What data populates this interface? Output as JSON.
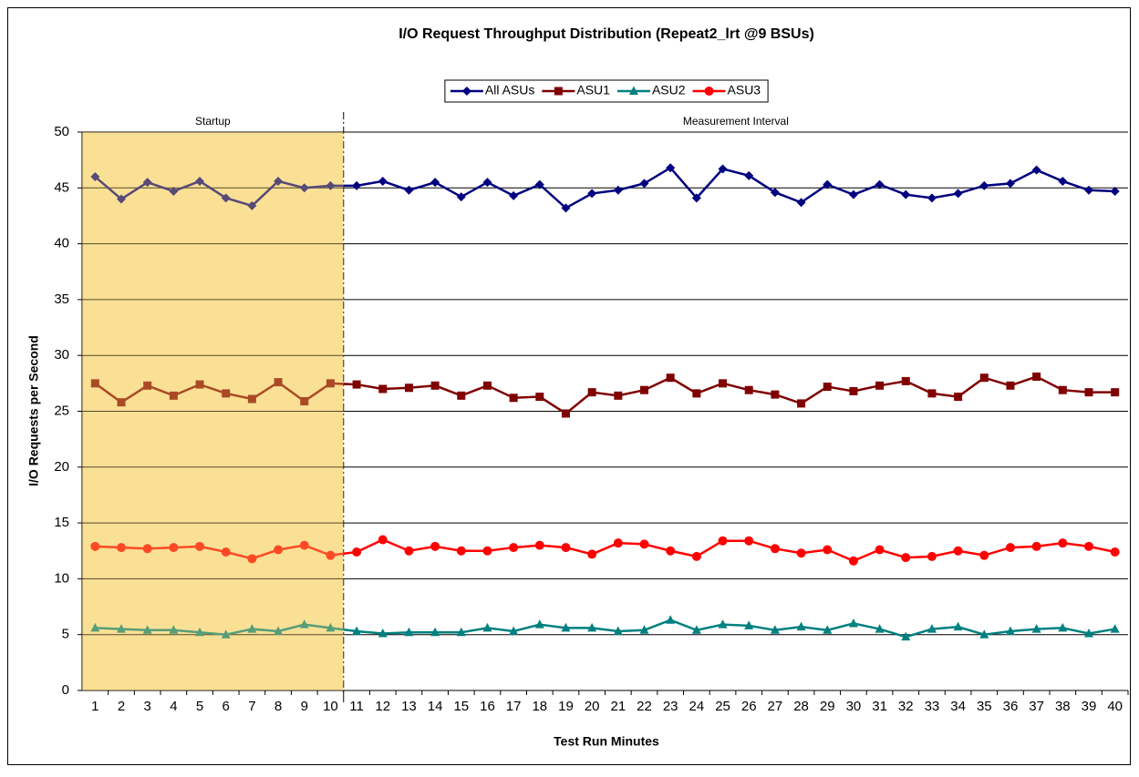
{
  "chart_data": {
    "type": "line",
    "title": "I/O Request Throughput Distribution (Repeat2_lrt @9 BSUs)",
    "x_label": "Test Run Minutes",
    "y_label": "I/O Requests per Second",
    "categories": [
      1,
      2,
      3,
      4,
      5,
      6,
      7,
      8,
      9,
      10,
      11,
      12,
      13,
      14,
      15,
      16,
      17,
      18,
      19,
      20,
      21,
      22,
      23,
      24,
      25,
      26,
      27,
      28,
      29,
      30,
      31,
      32,
      33,
      34,
      35,
      36,
      37,
      38,
      39,
      40
    ],
    "series": [
      {
        "name": "All ASUs",
        "color": "#000080",
        "marker": "diamond",
        "values": [
          46.0,
          44.0,
          45.5,
          44.7,
          45.6,
          44.1,
          43.4,
          45.6,
          45.0,
          45.2,
          45.2,
          45.6,
          44.8,
          45.5,
          44.2,
          45.5,
          44.3,
          45.3,
          43.2,
          44.5,
          44.8,
          45.4,
          46.8,
          44.1,
          46.7,
          46.1,
          44.6,
          43.7,
          45.3,
          44.4,
          45.3,
          44.4,
          44.1,
          44.5,
          45.2,
          45.4,
          46.6,
          45.6,
          44.8,
          44.7
        ]
      },
      {
        "name": "ASU1",
        "color": "#800000",
        "marker": "square",
        "values": [
          27.5,
          25.8,
          27.3,
          26.4,
          27.4,
          26.6,
          26.1,
          27.6,
          25.9,
          27.5,
          27.4,
          27.0,
          27.1,
          27.3,
          26.4,
          27.3,
          26.2,
          26.3,
          24.8,
          26.7,
          26.4,
          26.9,
          28.0,
          26.6,
          27.5,
          26.9,
          26.5,
          25.7,
          27.2,
          26.8,
          27.3,
          27.7,
          26.6,
          26.3,
          28.0,
          27.3,
          28.1,
          26.9,
          26.7,
          26.7
        ]
      },
      {
        "name": "ASU2",
        "color": "#008080",
        "marker": "triangle",
        "values": [
          5.6,
          5.5,
          5.4,
          5.4,
          5.2,
          5.0,
          5.5,
          5.3,
          5.9,
          5.6,
          5.3,
          5.1,
          5.2,
          5.2,
          5.2,
          5.6,
          5.3,
          5.9,
          5.6,
          5.6,
          5.3,
          5.4,
          6.3,
          5.4,
          5.9,
          5.8,
          5.4,
          5.7,
          5.4,
          6.0,
          5.5,
          4.8,
          5.5,
          5.7,
          5.0,
          5.3,
          5.5,
          5.6,
          5.1,
          5.5
        ]
      },
      {
        "name": "ASU3",
        "color": "#ff0000",
        "marker": "circle",
        "values": [
          12.9,
          12.8,
          12.7,
          12.8,
          12.9,
          12.4,
          11.8,
          12.6,
          13.0,
          12.1,
          12.4,
          13.5,
          12.5,
          12.9,
          12.5,
          12.5,
          12.8,
          13.0,
          12.8,
          12.2,
          13.2,
          13.1,
          12.5,
          12.0,
          13.4,
          13.4,
          12.7,
          12.3,
          12.6,
          11.6,
          12.6,
          11.9,
          12.0,
          12.5,
          12.1,
          12.8,
          12.9,
          13.2,
          12.9,
          12.4
        ]
      }
    ],
    "regions": [
      {
        "label": "Startup",
        "from": 1,
        "to": 10,
        "fill": "#f8d36a"
      },
      {
        "label": "Measurement Interval",
        "from": 11,
        "to": 40
      }
    ],
    "ylim": [
      0,
      50
    ],
    "yticks": [
      0,
      5,
      10,
      15,
      20,
      25,
      30,
      35,
      40,
      45,
      50
    ],
    "grid": true,
    "legend": "top"
  }
}
